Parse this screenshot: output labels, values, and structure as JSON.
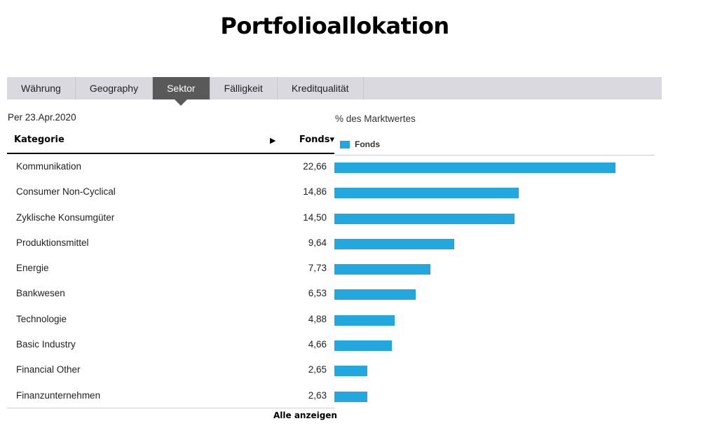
{
  "header": {
    "title": "Portfolioallokation"
  },
  "tabs": [
    {
      "label": "Währung",
      "active": false
    },
    {
      "label": "Geography",
      "active": false
    },
    {
      "label": "Sektor",
      "active": true
    },
    {
      "label": "Fälligkeit",
      "active": false
    },
    {
      "label": "Kreditqualität",
      "active": false
    }
  ],
  "as_of": "Per 23.Apr.2020",
  "table": {
    "col_category": "Kategorie",
    "col_expand_icon": "▶",
    "col_fund": "Fonds▾",
    "show_all": "Alle anzeigen"
  },
  "chart": {
    "label": "% des Marktwertes",
    "legend": "Fonds",
    "bar_color": "#22a8de"
  },
  "chart_data": {
    "type": "bar",
    "orientation": "horizontal",
    "title": "Portfolioallokation",
    "subtitle": "Per 23.Apr.2020",
    "xlabel": "% des Marktwertes",
    "ylabel": "Kategorie",
    "categories": [
      "Kommunikation",
      "Consumer Non-Cyclical",
      "Zyklische Konsumgüter",
      "Produktionsmittel",
      "Energie",
      "Bankwesen",
      "Technologie",
      "Basic Industry",
      "Financial Other",
      "Finanzunternehmen"
    ],
    "series": [
      {
        "name": "Fonds",
        "color": "#22a8de",
        "values": [
          22.66,
          14.86,
          14.5,
          9.64,
          7.73,
          6.53,
          4.88,
          4.66,
          2.65,
          2.63
        ]
      }
    ],
    "value_labels": [
      "22,66",
      "14,86",
      "14,50",
      "9,64",
      "7,73",
      "6,53",
      "4,88",
      "4,66",
      "2,65",
      "2,63"
    ],
    "grid": false,
    "legend_position": "top-left"
  }
}
